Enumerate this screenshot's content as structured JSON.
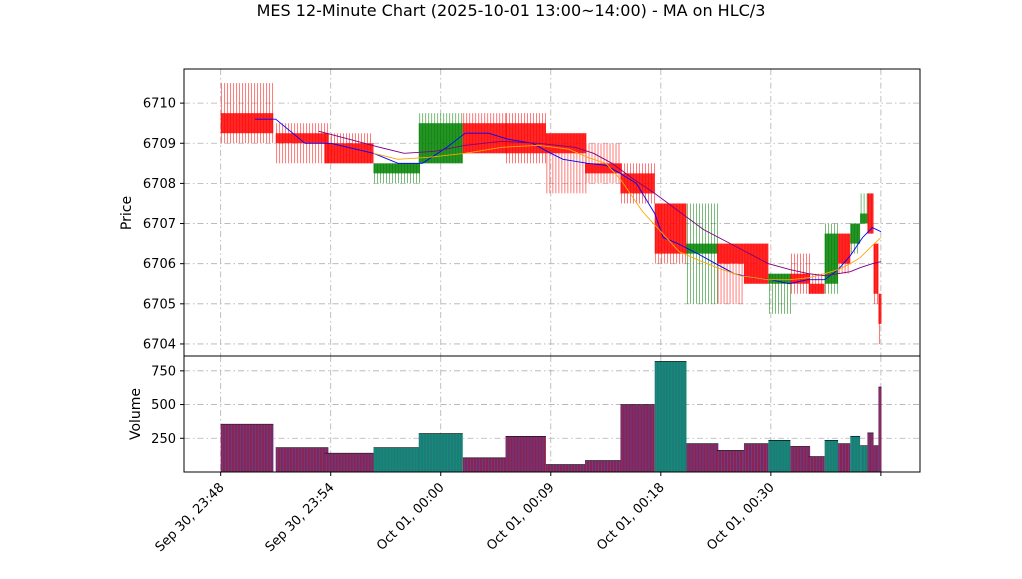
{
  "chart_data": {
    "type": "candlestick",
    "title": "MES 12-Minute Chart (2025-10-01 13:00~14:00) - MA on HLC/3",
    "price_panel": {
      "ylabel": "Price",
      "ylim": [
        6703.7,
        6710.85
      ],
      "yticks": [
        6704,
        6705,
        6706,
        6707,
        6708,
        6709,
        6710
      ],
      "grid": true
    },
    "volume_panel": {
      "ylabel": "Volume",
      "ylim": [
        0,
        860
      ],
      "yticks": [
        250,
        500,
        750
      ],
      "grid": true
    },
    "xlim": [
      -3,
      57.2
    ],
    "x_tick_labels": [
      {
        "x": 0,
        "label": "Sep 30, 23:48"
      },
      {
        "x": 9,
        "label": "Sep 30, 23:54"
      },
      {
        "x": 18,
        "label": "Oct 01, 00:00"
      },
      {
        "x": 27,
        "label": "Oct 01, 00:09"
      },
      {
        "x": 36,
        "label": "Oct 01, 00:18"
      },
      {
        "x": 45,
        "label": "Oct 01, 00:30"
      },
      {
        "x": 54,
        "label": ""
      }
    ],
    "colors": {
      "up": "#008000",
      "down": "#ff0000",
      "vol_up": "#1f7a7a",
      "vol_down": "#8b2252",
      "ma_fast": "#0000ff",
      "ma_mid": "#ffa500",
      "ma_slow": "#800080"
    },
    "candles": [
      {
        "x": 0,
        "w": 4.3,
        "open": 6709.75,
        "high": 6710.5,
        "low": 6709.0,
        "close": 6709.25
      },
      {
        "x": 4.5,
        "w": 4.3,
        "open": 6709.25,
        "high": 6709.5,
        "low": 6708.5,
        "close": 6709.0
      },
      {
        "x": 8.5,
        "w": 4.0,
        "open": 6709.0,
        "high": 6709.25,
        "low": 6708.5,
        "close": 6708.5
      },
      {
        "x": 12.5,
        "w": 3.8,
        "open": 6708.25,
        "high": 6708.5,
        "low": 6708.0,
        "close": 6708.5
      },
      {
        "x": 16.2,
        "w": 3.6,
        "open": 6708.5,
        "high": 6709.75,
        "low": 6708.5,
        "close": 6709.5
      },
      {
        "x": 19.8,
        "w": 3.6,
        "open": 6709.5,
        "high": 6709.75,
        "low": 6708.75,
        "close": 6708.75
      },
      {
        "x": 23.3,
        "w": 3.3,
        "open": 6709.5,
        "high": 6709.75,
        "low": 6708.5,
        "close": 6708.75
      },
      {
        "x": 26.6,
        "w": 3.3,
        "open": 6709.25,
        "high": 6709.25,
        "low": 6707.75,
        "close": 6708.75
      },
      {
        "x": 29.8,
        "w": 3.0,
        "open": 6708.5,
        "high": 6709.0,
        "low": 6708.0,
        "close": 6708.25
      },
      {
        "x": 32.7,
        "w": 2.8,
        "open": 6708.25,
        "high": 6708.5,
        "low": 6707.5,
        "close": 6707.75
      },
      {
        "x": 35.5,
        "w": 2.6,
        "open": 6707.5,
        "high": 6707.5,
        "low": 6706.0,
        "close": 6706.25
      },
      {
        "x": 38.1,
        "w": 2.6,
        "open": 6706.25,
        "high": 6707.5,
        "low": 6705.0,
        "close": 6706.5
      },
      {
        "x": 40.6,
        "w": 2.2,
        "open": 6706.5,
        "high": 6706.5,
        "low": 6705.0,
        "close": 6706.0
      },
      {
        "x": 42.8,
        "w": 2.0,
        "open": 6706.5,
        "high": 6706.5,
        "low": 6705.5,
        "close": 6705.5
      },
      {
        "x": 44.8,
        "w": 1.8,
        "open": 6705.5,
        "high": 6705.75,
        "low": 6704.75,
        "close": 6705.75
      },
      {
        "x": 46.6,
        "w": 1.6,
        "open": 6705.75,
        "high": 6706.25,
        "low": 6705.25,
        "close": 6705.5
      },
      {
        "x": 48.1,
        "w": 1.3,
        "open": 6705.5,
        "high": 6705.75,
        "low": 6705.25,
        "close": 6705.25
      },
      {
        "x": 49.4,
        "w": 1.1,
        "open": 6705.5,
        "high": 6707.0,
        "low": 6705.25,
        "close": 6706.75
      },
      {
        "x": 50.5,
        "w": 1.0,
        "open": 6706.75,
        "high": 6706.75,
        "low": 6705.75,
        "close": 6706.0
      },
      {
        "x": 51.5,
        "w": 0.8,
        "open": 6706.5,
        "high": 6707.0,
        "low": 6706.25,
        "close": 6707.0
      },
      {
        "x": 52.3,
        "w": 0.6,
        "open": 6707.0,
        "high": 6707.75,
        "low": 6707.0,
        "close": 6707.25
      },
      {
        "x": 52.9,
        "w": 0.5,
        "open": 6707.75,
        "high": 6707.75,
        "low": 6706.75,
        "close": 6706.75
      },
      {
        "x": 53.4,
        "w": 0.4,
        "open": 6706.5,
        "high": 6706.5,
        "low": 6705.0,
        "close": 6705.25
      },
      {
        "x": 53.8,
        "w": 0.25,
        "open": 6705.25,
        "high": 6705.25,
        "low": 6704.0,
        "close": 6704.5
      }
    ],
    "volume": [
      {
        "x": 0,
        "w": 4.3,
        "v": 355,
        "up": false
      },
      {
        "x": 4.5,
        "w": 4.3,
        "v": 180,
        "up": false
      },
      {
        "x": 8.5,
        "w": 4.0,
        "v": 140,
        "up": false
      },
      {
        "x": 12.5,
        "w": 3.8,
        "v": 180,
        "up": true
      },
      {
        "x": 16.2,
        "w": 3.6,
        "v": 285,
        "up": true
      },
      {
        "x": 19.8,
        "w": 3.6,
        "v": 105,
        "up": false
      },
      {
        "x": 23.3,
        "w": 3.3,
        "v": 265,
        "up": false
      },
      {
        "x": 26.6,
        "w": 3.3,
        "v": 55,
        "up": false
      },
      {
        "x": 29.8,
        "w": 3.0,
        "v": 85,
        "up": false
      },
      {
        "x": 32.7,
        "w": 2.8,
        "v": 500,
        "up": false
      },
      {
        "x": 35.5,
        "w": 2.6,
        "v": 820,
        "up": true
      },
      {
        "x": 38.1,
        "w": 2.6,
        "v": 210,
        "up": false
      },
      {
        "x": 40.6,
        "w": 2.2,
        "v": 160,
        "up": false
      },
      {
        "x": 42.8,
        "w": 2.0,
        "v": 210,
        "up": false
      },
      {
        "x": 44.8,
        "w": 1.8,
        "v": 235,
        "up": true
      },
      {
        "x": 46.6,
        "w": 1.6,
        "v": 190,
        "up": false
      },
      {
        "x": 48.1,
        "w": 1.3,
        "v": 115,
        "up": false
      },
      {
        "x": 49.4,
        "w": 1.1,
        "v": 235,
        "up": true
      },
      {
        "x": 50.5,
        "w": 1.0,
        "v": 210,
        "up": false
      },
      {
        "x": 51.5,
        "w": 0.8,
        "v": 265,
        "up": true
      },
      {
        "x": 52.3,
        "w": 0.6,
        "v": 195,
        "up": true
      },
      {
        "x": 52.9,
        "w": 0.5,
        "v": 290,
        "up": false
      },
      {
        "x": 53.4,
        "w": 0.4,
        "v": 195,
        "up": false
      },
      {
        "x": 53.8,
        "w": 0.25,
        "v": 630,
        "up": false
      }
    ],
    "moving_averages": [
      {
        "key": "ma_fast",
        "points": [
          [
            2.8,
            6709.6
          ],
          [
            4.5,
            6709.6
          ],
          [
            6.9,
            6709.0
          ],
          [
            9.0,
            6709.0
          ],
          [
            12.5,
            6708.75
          ],
          [
            14.5,
            6708.5
          ],
          [
            16.5,
            6708.5
          ],
          [
            18.5,
            6708.9
          ],
          [
            20.0,
            6709.25
          ],
          [
            21.9,
            6709.25
          ],
          [
            23.5,
            6709.1
          ],
          [
            25.5,
            6709.0
          ],
          [
            27.0,
            6708.75
          ],
          [
            28.0,
            6708.6
          ],
          [
            30.0,
            6708.5
          ],
          [
            31.5,
            6708.45
          ],
          [
            32.4,
            6708.3
          ],
          [
            34.0,
            6708.0
          ],
          [
            35.5,
            6707.25
          ],
          [
            36.2,
            6706.65
          ],
          [
            37.4,
            6706.5
          ],
          [
            39.0,
            6706.25
          ],
          [
            40.5,
            6706.0
          ],
          [
            42.0,
            6705.75
          ],
          [
            43.5,
            6705.65
          ],
          [
            45.0,
            6705.6
          ],
          [
            46.5,
            6705.5
          ],
          [
            48.0,
            6705.6
          ],
          [
            49.4,
            6705.6
          ],
          [
            50.5,
            6705.85
          ],
          [
            51.5,
            6706.2
          ],
          [
            52.5,
            6706.65
          ],
          [
            53.3,
            6706.9
          ],
          [
            54.0,
            6706.8
          ]
        ]
      },
      {
        "key": "ma_mid",
        "points": [
          [
            12.5,
            6708.75
          ],
          [
            14.5,
            6708.6
          ],
          [
            17.0,
            6708.65
          ],
          [
            20.0,
            6708.75
          ],
          [
            23.0,
            6708.9
          ],
          [
            26.0,
            6708.95
          ],
          [
            28.5,
            6708.85
          ],
          [
            30.0,
            6708.65
          ],
          [
            31.5,
            6708.5
          ],
          [
            32.7,
            6708.1
          ],
          [
            34.5,
            6707.3
          ],
          [
            36.0,
            6706.8
          ],
          [
            37.5,
            6706.3
          ],
          [
            39.0,
            6706.1
          ],
          [
            40.6,
            6705.9
          ],
          [
            42.5,
            6705.7
          ],
          [
            44.8,
            6705.6
          ],
          [
            46.6,
            6705.6
          ],
          [
            48.1,
            6705.65
          ],
          [
            49.4,
            6705.75
          ],
          [
            50.5,
            6705.85
          ],
          [
            51.5,
            6706.0
          ],
          [
            52.3,
            6706.15
          ],
          [
            53.3,
            6706.45
          ],
          [
            54.0,
            6706.65
          ]
        ]
      },
      {
        "key": "ma_slow",
        "points": [
          [
            8.0,
            6709.3
          ],
          [
            10.5,
            6709.1
          ],
          [
            13.0,
            6708.9
          ],
          [
            15.0,
            6708.75
          ],
          [
            17.5,
            6708.8
          ],
          [
            20.0,
            6708.95
          ],
          [
            23.0,
            6709.05
          ],
          [
            26.0,
            6709.0
          ],
          [
            29.0,
            6708.9
          ],
          [
            30.5,
            6708.75
          ],
          [
            32.0,
            6708.5
          ],
          [
            33.8,
            6708.1
          ],
          [
            35.5,
            6707.75
          ],
          [
            37.5,
            6707.3
          ],
          [
            39.5,
            6706.85
          ],
          [
            42.0,
            6706.45
          ],
          [
            44.8,
            6706.0
          ],
          [
            46.6,
            6705.85
          ],
          [
            48.1,
            6705.75
          ],
          [
            49.4,
            6705.7
          ],
          [
            50.5,
            6705.75
          ],
          [
            51.5,
            6705.8
          ],
          [
            52.3,
            6705.9
          ],
          [
            53.3,
            6706.0
          ],
          [
            54.0,
            6706.05
          ]
        ]
      }
    ]
  }
}
